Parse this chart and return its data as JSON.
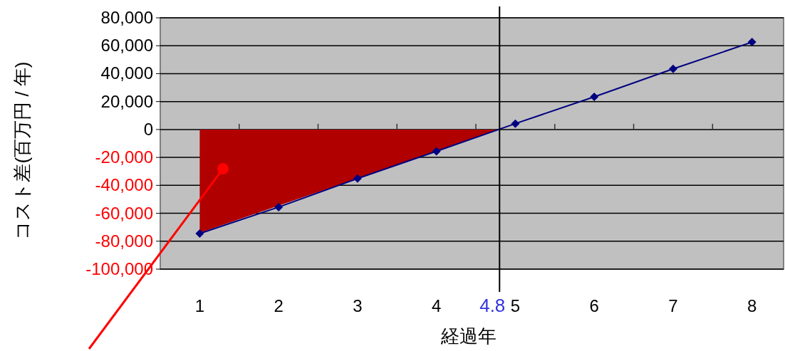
{
  "chart_data": {
    "type": "line",
    "xlabel": "経過年",
    "ylabel": "コスト差(百万円 / 年)",
    "xlim": [
      0.5,
      8.4
    ],
    "ylim": [
      -100000,
      80000
    ],
    "yticks": [
      {
        "value": 80000,
        "label": "80,000"
      },
      {
        "value": 60000,
        "label": "60,000"
      },
      {
        "value": 40000,
        "label": "40,000"
      },
      {
        "value": 20000,
        "label": "20,000"
      },
      0,
      {
        "value": -20000,
        "label": "-20,000"
      },
      {
        "value": -40000,
        "label": "-40,000"
      },
      {
        "value": -60000,
        "label": "-60,000"
      },
      {
        "value": -80000,
        "label": "-80,000"
      },
      {
        "value": -100000,
        "label": "-100,000"
      }
    ],
    "xticks": [
      1,
      2,
      3,
      4,
      5,
      6,
      7,
      8,
      {
        "value": 1.5,
        "label": null
      },
      {
        "value": 2.5,
        "label": null
      },
      {
        "value": 3.5,
        "label": null
      },
      {
        "value": 4.5,
        "label": null
      },
      {
        "value": 5.5,
        "label": null
      },
      {
        "value": 6.5,
        "label": null
      },
      {
        "value": 7.5,
        "label": null
      }
    ],
    "grid": "y",
    "line_style": "solid",
    "ref_lines": [
      {
        "axis": "x",
        "value": 4.8,
        "label": "4.8",
        "color": "#000000"
      }
    ],
    "series": [
      {
        "type": "area",
        "x": [
          1,
          4.8
        ],
        "values": [
          -74000,
          0
        ],
        "color": "#b00000"
      },
      {
        "x": [
          1,
          2,
          3,
          4,
          5,
          6,
          7,
          8
        ],
        "values": [
          -74500,
          -55600,
          -35100,
          -15600,
          4200,
          23400,
          43400,
          62600
        ],
        "color": "#000080",
        "marker": "diamond"
      }
    ]
  }
}
